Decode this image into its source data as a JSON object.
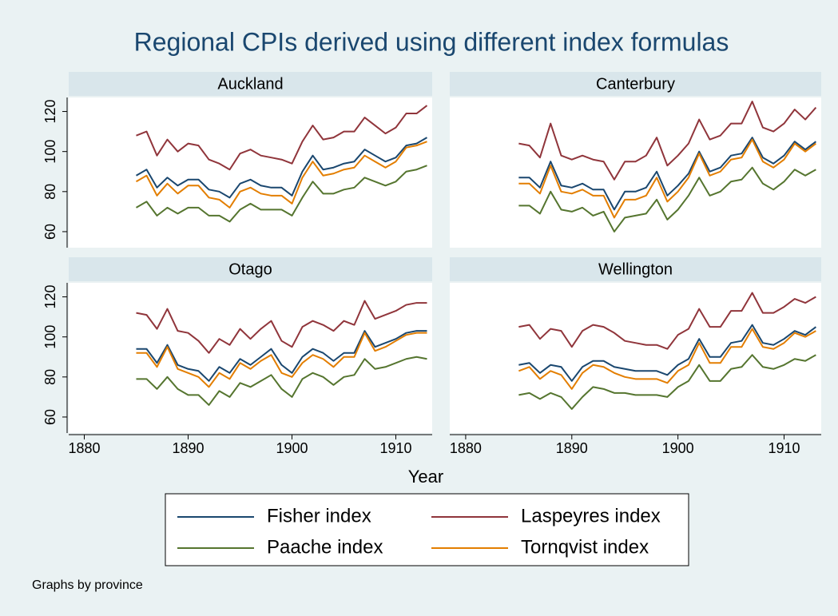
{
  "title": "Regional CPIs derived using different index formulas",
  "xlabel": "Year",
  "note": "Graphs by province",
  "legend": [
    {
      "name": "Fisher index",
      "color": "#1a476f"
    },
    {
      "name": "Laspeyres index",
      "color": "#90353b"
    },
    {
      "name": "Paache index",
      "color": "#55752f"
    },
    {
      "name": "Tornqvist index",
      "color": "#e37e00"
    }
  ],
  "chart_data": [
    {
      "type": "line",
      "title": "Auckland",
      "x": [
        1885,
        1886,
        1887,
        1888,
        1889,
        1890,
        1891,
        1892,
        1893,
        1894,
        1895,
        1896,
        1897,
        1898,
        1899,
        1900,
        1901,
        1902,
        1903,
        1904,
        1905,
        1906,
        1907,
        1908,
        1909,
        1910,
        1911,
        1912,
        1913
      ],
      "xlim": [
        1878.5,
        1913.5
      ],
      "xticks": [
        1880,
        1890,
        1900,
        1910
      ],
      "ylim": [
        52,
        127
      ],
      "yticks": [
        60,
        80,
        100,
        120
      ],
      "series": [
        {
          "values": [
            88,
            91,
            82,
            87,
            83,
            86,
            86,
            81,
            80,
            77,
            84,
            86,
            83,
            82,
            82,
            78,
            90,
            98,
            91,
            92,
            94,
            95,
            101,
            98,
            95,
            97,
            103,
            104,
            107
          ]
        },
        {
          "values": [
            108,
            110,
            98,
            106,
            100,
            104,
            103,
            96,
            94,
            91,
            99,
            101,
            98,
            97,
            96,
            94,
            105,
            113,
            106,
            107,
            110,
            110,
            117,
            113,
            109,
            112,
            119,
            119,
            123
          ]
        },
        {
          "values": [
            72,
            75,
            68,
            72,
            69,
            72,
            72,
            68,
            68,
            65,
            71,
            74,
            71,
            71,
            71,
            68,
            77,
            85,
            79,
            79,
            81,
            82,
            87,
            85,
            83,
            85,
            90,
            91,
            93
          ]
        },
        {
          "values": [
            85,
            88,
            78,
            84,
            79,
            83,
            83,
            77,
            76,
            72,
            80,
            82,
            79,
            78,
            78,
            74,
            87,
            95,
            88,
            89,
            91,
            92,
            98,
            95,
            92,
            95,
            102,
            103,
            105
          ]
        }
      ]
    },
    {
      "type": "line",
      "title": "Canterbury",
      "x": [
        1885,
        1886,
        1887,
        1888,
        1889,
        1890,
        1891,
        1892,
        1893,
        1894,
        1895,
        1896,
        1897,
        1898,
        1899,
        1900,
        1901,
        1902,
        1903,
        1904,
        1905,
        1906,
        1907,
        1908,
        1909,
        1910,
        1911,
        1912,
        1913
      ],
      "xlim": [
        1878.5,
        1913.5
      ],
      "xticks": [
        1880,
        1890,
        1900,
        1910
      ],
      "ylim": [
        52,
        127
      ],
      "yticks": [
        60,
        80,
        100,
        120
      ],
      "series": [
        {
          "values": [
            87,
            87,
            82,
            95,
            83,
            82,
            84,
            81,
            81,
            71,
            80,
            80,
            82,
            90,
            78,
            83,
            89,
            100,
            90,
            92,
            98,
            99,
            107,
            97,
            94,
            98,
            105,
            101,
            105
          ]
        },
        {
          "values": [
            104,
            103,
            97,
            114,
            98,
            96,
            98,
            96,
            95,
            86,
            95,
            95,
            98,
            107,
            93,
            98,
            104,
            116,
            106,
            108,
            114,
            114,
            125,
            112,
            110,
            114,
            121,
            116,
            122
          ]
        },
        {
          "values": [
            73,
            73,
            69,
            80,
            71,
            70,
            72,
            68,
            70,
            60,
            67,
            68,
            69,
            76,
            66,
            71,
            78,
            87,
            78,
            80,
            85,
            86,
            92,
            84,
            81,
            85,
            91,
            88,
            91
          ]
        },
        {
          "values": [
            84,
            84,
            79,
            93,
            80,
            79,
            81,
            78,
            78,
            67,
            76,
            76,
            78,
            87,
            75,
            80,
            87,
            99,
            88,
            90,
            96,
            97,
            106,
            95,
            92,
            96,
            104,
            100,
            104
          ]
        }
      ]
    },
    {
      "type": "line",
      "title": "Otago",
      "x": [
        1885,
        1886,
        1887,
        1888,
        1889,
        1890,
        1891,
        1892,
        1893,
        1894,
        1895,
        1896,
        1897,
        1898,
        1899,
        1900,
        1901,
        1902,
        1903,
        1904,
        1905,
        1906,
        1907,
        1908,
        1909,
        1910,
        1911,
        1912,
        1913
      ],
      "xlim": [
        1878.5,
        1913.5
      ],
      "xticks": [
        1880,
        1890,
        1900,
        1910
      ],
      "ylim": [
        52,
        127
      ],
      "yticks": [
        60,
        80,
        100,
        120
      ],
      "series": [
        {
          "values": [
            94,
            94,
            87,
            96,
            86,
            84,
            83,
            78,
            85,
            82,
            89,
            86,
            90,
            94,
            86,
            82,
            90,
            94,
            92,
            88,
            92,
            92,
            103,
            95,
            97,
            99,
            102,
            103,
            103
          ]
        },
        {
          "values": [
            112,
            111,
            104,
            114,
            103,
            102,
            98,
            92,
            99,
            96,
            104,
            99,
            104,
            108,
            98,
            95,
            105,
            108,
            106,
            103,
            108,
            106,
            118,
            109,
            111,
            113,
            116,
            117,
            117
          ]
        },
        {
          "values": [
            79,
            79,
            74,
            80,
            74,
            71,
            71,
            66,
            73,
            70,
            77,
            75,
            78,
            81,
            74,
            70,
            79,
            82,
            80,
            76,
            80,
            81,
            89,
            84,
            85,
            87,
            89,
            90,
            89
          ]
        },
        {
          "values": [
            92,
            92,
            85,
            95,
            84,
            82,
            80,
            75,
            82,
            79,
            87,
            84,
            88,
            91,
            82,
            80,
            87,
            91,
            89,
            85,
            90,
            90,
            102,
            93,
            95,
            98,
            101,
            102,
            102
          ]
        }
      ]
    },
    {
      "type": "line",
      "title": "Wellington",
      "x": [
        1885,
        1886,
        1887,
        1888,
        1889,
        1890,
        1891,
        1892,
        1893,
        1894,
        1895,
        1896,
        1897,
        1898,
        1899,
        1900,
        1901,
        1902,
        1903,
        1904,
        1905,
        1906,
        1907,
        1908,
        1909,
        1910,
        1911,
        1912,
        1913
      ],
      "xlim": [
        1878.5,
        1913.5
      ],
      "xticks": [
        1880,
        1890,
        1900,
        1910
      ],
      "ylim": [
        52,
        127
      ],
      "yticks": [
        60,
        80,
        100,
        120
      ],
      "series": [
        {
          "values": [
            86,
            87,
            82,
            86,
            85,
            78,
            85,
            88,
            88,
            85,
            84,
            83,
            83,
            83,
            81,
            86,
            89,
            99,
            90,
            90,
            97,
            98,
            106,
            97,
            96,
            99,
            103,
            101,
            105
          ]
        },
        {
          "values": [
            105,
            106,
            99,
            104,
            103,
            95,
            103,
            106,
            105,
            102,
            98,
            97,
            96,
            96,
            94,
            101,
            104,
            114,
            105,
            105,
            113,
            113,
            122,
            112,
            112,
            115,
            119,
            117,
            120
          ]
        },
        {
          "values": [
            71,
            72,
            69,
            72,
            70,
            64,
            70,
            75,
            74,
            72,
            72,
            71,
            71,
            71,
            70,
            75,
            78,
            86,
            78,
            78,
            84,
            85,
            91,
            85,
            84,
            86,
            89,
            88,
            91
          ]
        },
        {
          "values": [
            83,
            85,
            79,
            83,
            81,
            74,
            82,
            86,
            85,
            82,
            80,
            79,
            79,
            79,
            77,
            83,
            86,
            97,
            87,
            87,
            95,
            95,
            104,
            95,
            94,
            97,
            102,
            100,
            103
          ]
        }
      ]
    }
  ]
}
